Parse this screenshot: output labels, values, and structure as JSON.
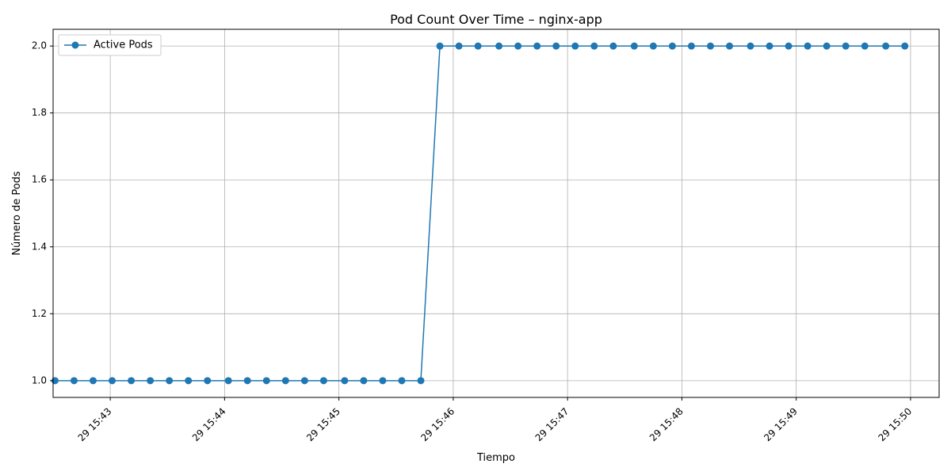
{
  "chart_data": {
    "type": "line",
    "title": "Pod Count Over Time – nginx-app",
    "xlabel": "Tiempo",
    "ylabel": "Número de Pods",
    "grid": true,
    "legend_position": "top-left",
    "xlim_minutes": [
      "15:42:30",
      "15:50:15"
    ],
    "ylim": [
      0.95,
      2.05
    ],
    "x_tick_labels": [
      "29 15:43",
      "29 15:44",
      "29 15:45",
      "29 15:46",
      "29 15:47",
      "29 15:48",
      "29 15:49",
      "29 15:50"
    ],
    "x_tick_times": [
      "15:43:00",
      "15:44:00",
      "15:45:00",
      "15:46:00",
      "15:47:00",
      "15:48:00",
      "15:49:00",
      "15:50:00"
    ],
    "y_tick_labels": [
      "1.0",
      "1.2",
      "1.4",
      "1.6",
      "1.8",
      "2.0"
    ],
    "y_ticks": [
      1.0,
      1.2,
      1.4,
      1.6,
      1.8,
      2.0
    ],
    "series": [
      {
        "name": "Active Pods",
        "color": "#1f77b4",
        "marker": "circle",
        "x": [
          "15:42:31",
          "15:42:41",
          "15:42:51",
          "15:43:01",
          "15:43:11",
          "15:43:21",
          "15:43:31",
          "15:43:41",
          "15:43:51",
          "15:44:02",
          "15:44:12",
          "15:44:22",
          "15:44:32",
          "15:44:42",
          "15:44:52",
          "15:45:03",
          "15:45:13",
          "15:45:23",
          "15:45:33",
          "15:45:43",
          "15:45:53",
          "15:46:03",
          "15:46:13",
          "15:46:24",
          "15:46:34",
          "15:46:44",
          "15:46:54",
          "15:47:04",
          "15:47:14",
          "15:47:24",
          "15:47:35",
          "15:47:45",
          "15:47:55",
          "15:48:05",
          "15:48:15",
          "15:48:25",
          "15:48:36",
          "15:48:46",
          "15:48:56",
          "15:49:06",
          "15:49:16",
          "15:49:26",
          "15:49:36",
          "15:49:47",
          "15:49:57"
        ],
        "values": [
          1,
          1,
          1,
          1,
          1,
          1,
          1,
          1,
          1,
          1,
          1,
          1,
          1,
          1,
          1,
          1,
          1,
          1,
          1,
          1,
          2,
          2,
          2,
          2,
          2,
          2,
          2,
          2,
          2,
          2,
          2,
          2,
          2,
          2,
          2,
          2,
          2,
          2,
          2,
          2,
          2,
          2,
          2,
          2,
          2
        ]
      }
    ]
  }
}
